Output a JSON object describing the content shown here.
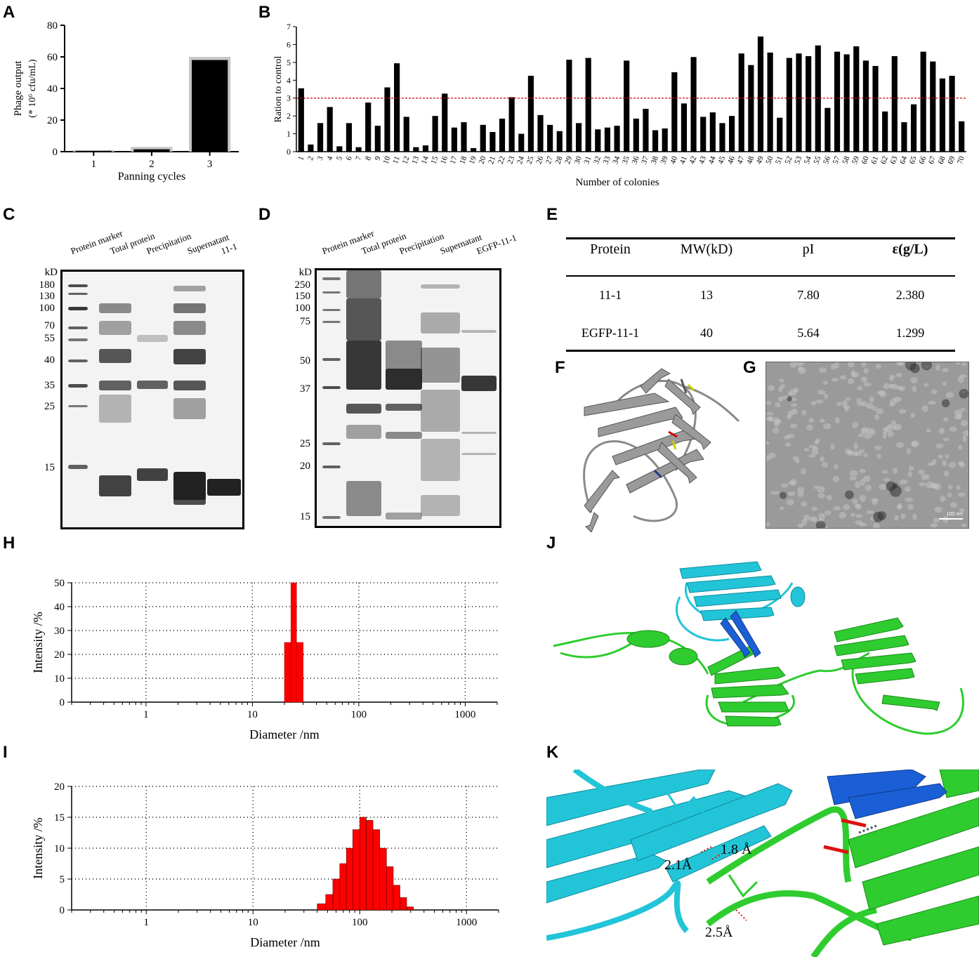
{
  "panels": {
    "A": "A",
    "B": "B",
    "C": "C",
    "D": "D",
    "E": "E",
    "F": "F",
    "G": "G",
    "H": "H",
    "I": "I",
    "J": "J",
    "K": "K"
  },
  "chart_data": [
    {
      "panel": "A",
      "type": "bar",
      "categories": [
        "1",
        "2",
        "3"
      ],
      "values": [
        0.5,
        1.5,
        58
      ],
      "errors": [
        0.5,
        1.5,
        2
      ],
      "xlabel": "Panning cycles",
      "ylabel": "Phage output",
      "ylabel2": "(* 10⁶ cfu/mL)",
      "ylim": [
        0,
        80
      ],
      "yticks": [
        0,
        20,
        40,
        60,
        80
      ],
      "bar_color": "#000000",
      "error_color": "#c8c8c8"
    },
    {
      "panel": "B",
      "type": "bar",
      "categories": [
        "1",
        "2",
        "3",
        "4",
        "5",
        "6",
        "7",
        "8",
        "9",
        "10",
        "11",
        "12",
        "13",
        "14",
        "15",
        "16",
        "17",
        "18",
        "19",
        "20",
        "21",
        "22",
        "23",
        "24",
        "25",
        "26",
        "27",
        "28",
        "29",
        "30",
        "31",
        "32",
        "33",
        "34",
        "35",
        "36",
        "37",
        "38",
        "39",
        "40",
        "41",
        "42",
        "43",
        "44",
        "45",
        "46",
        "47",
        "48",
        "49",
        "50",
        "51",
        "52",
        "53",
        "54",
        "55",
        "56",
        "57",
        "58",
        "59",
        "60",
        "61",
        "62",
        "63",
        "64",
        "65",
        "66",
        "67",
        "68",
        "69",
        "70"
      ],
      "values": [
        3.55,
        0.4,
        1.6,
        2.5,
        0.3,
        1.6,
        0.25,
        2.75,
        1.45,
        3.6,
        4.95,
        1.95,
        0.25,
        0.35,
        2.0,
        3.25,
        1.35,
        1.65,
        0.2,
        1.5,
        1.1,
        1.85,
        3.05,
        1.0,
        4.25,
        2.05,
        1.5,
        1.15,
        5.15,
        1.6,
        5.25,
        1.25,
        1.35,
        1.45,
        5.1,
        1.85,
        2.4,
        1.2,
        1.3,
        4.45,
        2.7,
        5.3,
        1.95,
        2.2,
        1.6,
        2.0,
        5.5,
        4.85,
        6.45,
        5.55,
        1.9,
        5.25,
        5.5,
        5.35,
        5.95,
        2.45,
        5.6,
        5.45,
        5.9,
        5.1,
        4.8,
        2.25,
        5.35,
        1.65,
        2.65,
        5.6,
        5.05,
        4.1,
        4.25,
        1.7
      ],
      "threshold": 3,
      "threshold_color": "#d00000",
      "xlabel": "Number of colonies",
      "ylabel": "Ration to control",
      "ylim": [
        0,
        7
      ],
      "yticks": [
        0,
        1,
        2,
        3,
        4,
        5,
        6,
        7
      ]
    },
    {
      "panel": "H",
      "type": "bar",
      "xscale": "log",
      "x": [
        21.5,
        24.5,
        28
      ],
      "widths": [
        [
          20,
          23
        ],
        [
          23,
          26
        ],
        [
          26,
          30
        ]
      ],
      "values": [
        25,
        50,
        25
      ],
      "xlabel": "Diameter /nm",
      "ylabel": "Intensity /%",
      "xlim": [
        0.2,
        2000
      ],
      "xticks": [
        "1",
        "10",
        "100",
        "1000"
      ],
      "ylim": [
        0,
        50
      ],
      "yticks": [
        0,
        10,
        20,
        30,
        40,
        50
      ],
      "bar_color": "#ff0000"
    },
    {
      "panel": "I",
      "type": "bar",
      "xscale": "log",
      "edges": [
        40,
        48,
        56,
        65,
        75,
        86,
        100,
        115,
        133,
        154,
        178,
        206,
        238,
        275,
        318
      ],
      "values": [
        1,
        2.5,
        5,
        7.5,
        10,
        13,
        15,
        14.5,
        13,
        10,
        7,
        4,
        2,
        0.5
      ],
      "xlabel": "Diameter /nm",
      "ylabel": "Intensity /%",
      "xlim": [
        0.2,
        2000
      ],
      "xticks": [
        "1",
        "10",
        "100",
        "1000"
      ],
      "ylim": [
        0,
        20
      ],
      "yticks": [
        0,
        5,
        10,
        15,
        20
      ],
      "bar_color": "#ff0000"
    }
  ],
  "gelC": {
    "headers": [
      "Protein marker",
      "Total protein",
      "Precipitation",
      "Supernatant",
      "11-1"
    ],
    "unit": "kD",
    "markers": [
      "180",
      "130",
      "100",
      "70",
      "55",
      "40",
      "35",
      "25",
      "15"
    ]
  },
  "gelD": {
    "headers": [
      "Protein marker",
      "Total protein",
      "Precipitation",
      "Supernatant",
      "EGFP-11-1"
    ],
    "unit": "kD",
    "markers": [
      "250",
      "150",
      "100",
      "75",
      "50",
      "37",
      "25",
      "20",
      "15"
    ]
  },
  "tableE": {
    "headers": [
      "Protein",
      "MW(kD)",
      "pI",
      "ε(g/L)"
    ],
    "rows": [
      [
        "11-1",
        "13",
        "7.80",
        "2.380"
      ],
      [
        "EGFP-11-1",
        "40",
        "5.64",
        "1.299"
      ]
    ]
  },
  "panelG": {
    "scale_bar": "100 nm"
  },
  "panelK": {
    "distances": [
      "1.8 Å",
      "2.1Å",
      "2.5Å"
    ]
  },
  "colors": {
    "cyan": "#22c4d8",
    "green": "#2ecc2e",
    "blue": "#1b5fd6",
    "red": "#dd1111"
  }
}
